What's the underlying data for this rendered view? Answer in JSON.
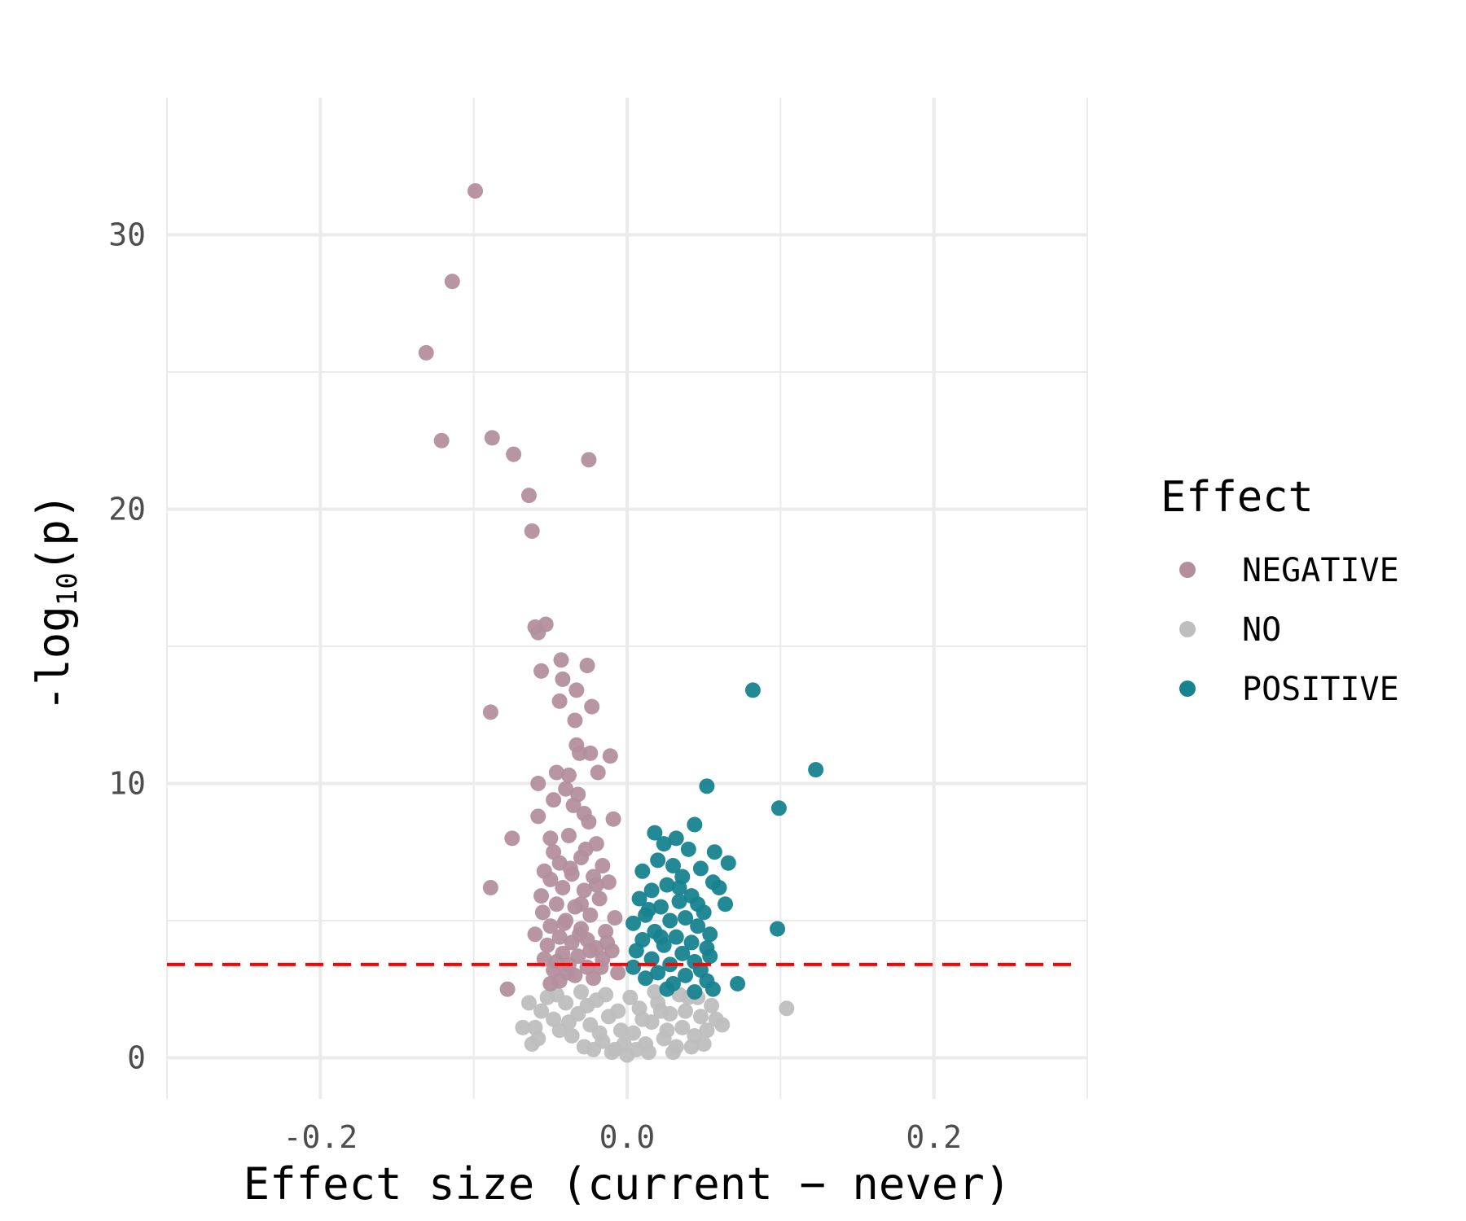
{
  "chart_data": {
    "type": "scatter",
    "title": "",
    "xlabel": "Effect size (current − never)",
    "ylabel_main": "-log",
    "ylabel_sub": "10",
    "ylabel_tail": "(p)",
    "xlim": [
      -0.3,
      0.3
    ],
    "ylim": [
      -1.5,
      35
    ],
    "x_ticks": [
      -0.2,
      0.0,
      0.2
    ],
    "x_tick_labels": [
      "-0.2",
      "0.0",
      "0.2"
    ],
    "y_ticks": [
      0,
      10,
      20,
      30
    ],
    "y_tick_labels": [
      "0",
      "10",
      "20",
      "30"
    ],
    "grid": true,
    "threshold": {
      "y": 3.4,
      "color": "#ff0000",
      "style": "dashed"
    },
    "legend": {
      "title": "Effect",
      "placement": "right",
      "entries": [
        {
          "label": "NEGATIVE",
          "color": "#b38f9e"
        },
        {
          "label": "NO",
          "color": "#bebebe"
        },
        {
          "label": "POSITIVE",
          "color": "#17838f"
        }
      ]
    },
    "series": [
      {
        "name": "NEGATIVE",
        "color": "#b38f9e",
        "points": [
          [
            -0.099,
            31.6
          ],
          [
            -0.114,
            28.3
          ],
          [
            -0.131,
            25.7
          ],
          [
            -0.121,
            22.5
          ],
          [
            -0.088,
            22.6
          ],
          [
            -0.074,
            22.0
          ],
          [
            -0.025,
            21.8
          ],
          [
            -0.064,
            20.5
          ],
          [
            -0.062,
            19.2
          ],
          [
            -0.06,
            15.7
          ],
          [
            -0.053,
            15.8
          ],
          [
            -0.058,
            15.5
          ],
          [
            -0.043,
            14.5
          ],
          [
            -0.026,
            14.3
          ],
          [
            -0.056,
            14.1
          ],
          [
            -0.042,
            13.8
          ],
          [
            -0.033,
            13.4
          ],
          [
            -0.089,
            12.6
          ],
          [
            -0.023,
            12.8
          ],
          [
            -0.044,
            13.0
          ],
          [
            -0.034,
            12.3
          ],
          [
            -0.033,
            11.4
          ],
          [
            -0.031,
            11.1
          ],
          [
            -0.011,
            11.0
          ],
          [
            -0.024,
            11.1
          ],
          [
            -0.046,
            10.4
          ],
          [
            -0.038,
            10.3
          ],
          [
            -0.019,
            10.4
          ],
          [
            -0.058,
            10.0
          ],
          [
            -0.04,
            9.8
          ],
          [
            -0.032,
            9.6
          ],
          [
            -0.048,
            9.4
          ],
          [
            -0.035,
            9.2
          ],
          [
            -0.028,
            8.9
          ],
          [
            -0.058,
            8.8
          ],
          [
            -0.009,
            8.7
          ],
          [
            -0.025,
            8.6
          ],
          [
            -0.05,
            8.0
          ],
          [
            -0.075,
            8.0
          ],
          [
            -0.038,
            8.1
          ],
          [
            -0.02,
            7.8
          ],
          [
            -0.048,
            7.5
          ],
          [
            -0.03,
            7.3
          ],
          [
            -0.044,
            7.1
          ],
          [
            -0.016,
            7.0
          ],
          [
            -0.054,
            6.8
          ],
          [
            -0.036,
            6.7
          ],
          [
            -0.022,
            6.6
          ],
          [
            -0.05,
            6.5
          ],
          [
            -0.012,
            6.4
          ],
          [
            -0.089,
            6.2
          ],
          [
            -0.042,
            6.2
          ],
          [
            -0.028,
            6.1
          ],
          [
            -0.056,
            5.9
          ],
          [
            -0.018,
            5.8
          ],
          [
            -0.046,
            5.6
          ],
          [
            -0.034,
            5.5
          ],
          [
            -0.055,
            5.3
          ],
          [
            -0.024,
            5.2
          ],
          [
            -0.008,
            5.1
          ],
          [
            -0.04,
            5.0
          ],
          [
            -0.05,
            4.8
          ],
          [
            -0.03,
            4.7
          ],
          [
            -0.014,
            4.6
          ],
          [
            -0.06,
            4.5
          ],
          [
            -0.044,
            4.4
          ],
          [
            -0.026,
            4.3
          ],
          [
            -0.036,
            4.2
          ],
          [
            -0.052,
            4.1
          ],
          [
            -0.02,
            4.0
          ],
          [
            -0.01,
            3.9
          ],
          [
            -0.042,
            3.8
          ],
          [
            -0.032,
            3.7
          ],
          [
            -0.054,
            3.6
          ],
          [
            -0.016,
            3.6
          ],
          [
            -0.046,
            3.5
          ],
          [
            -0.038,
            3.4
          ],
          [
            -0.026,
            3.3
          ],
          [
            -0.048,
            3.2
          ],
          [
            -0.006,
            3.1
          ],
          [
            -0.034,
            3.0
          ],
          [
            -0.022,
            2.9
          ],
          [
            -0.044,
            2.8
          ],
          [
            -0.05,
            2.7
          ],
          [
            -0.078,
            2.5
          ],
          [
            -0.03,
            5.6
          ],
          [
            -0.02,
            6.3
          ],
          [
            -0.037,
            6.9
          ],
          [
            -0.027,
            7.6
          ],
          [
            -0.041,
            4.9
          ],
          [
            -0.013,
            4.2
          ],
          [
            -0.031,
            4.5
          ],
          [
            -0.024,
            3.9
          ],
          [
            -0.039,
            3.1
          ],
          [
            -0.017,
            3.3
          ]
        ]
      },
      {
        "name": "NO",
        "color": "#bebebe",
        "points": [
          [
            0.104,
            1.8
          ],
          [
            -0.06,
            1.1
          ],
          [
            -0.068,
            1.1
          ],
          [
            -0.062,
            0.5
          ],
          [
            -0.058,
            0.7
          ],
          [
            0.062,
            1.2
          ],
          [
            -0.064,
            2.0
          ],
          [
            -0.056,
            1.7
          ],
          [
            -0.048,
            1.4
          ],
          [
            -0.052,
            2.2
          ],
          [
            -0.04,
            2.0
          ],
          [
            -0.044,
            1.0
          ],
          [
            -0.036,
            0.8
          ],
          [
            -0.032,
            1.6
          ],
          [
            -0.028,
            0.4
          ],
          [
            -0.024,
            1.2
          ],
          [
            -0.02,
            2.1
          ],
          [
            -0.016,
            0.6
          ],
          [
            -0.012,
            1.5
          ],
          [
            -0.008,
            0.3
          ],
          [
            -0.004,
            1.0
          ],
          [
            0.0,
            0.1
          ],
          [
            0.004,
            0.9
          ],
          [
            0.008,
            1.8
          ],
          [
            0.012,
            0.5
          ],
          [
            0.016,
            1.3
          ],
          [
            0.02,
            2.0
          ],
          [
            0.024,
            0.7
          ],
          [
            0.028,
            1.6
          ],
          [
            0.032,
            0.4
          ],
          [
            0.036,
            1.1
          ],
          [
            0.04,
            2.2
          ],
          [
            0.044,
            0.8
          ],
          [
            0.048,
            1.5
          ],
          [
            0.05,
            0.5
          ],
          [
            0.052,
            1.0
          ],
          [
            0.055,
            1.9
          ],
          [
            0.058,
            1.4
          ],
          [
            -0.046,
            2.3
          ],
          [
            -0.03,
            2.4
          ],
          [
            -0.014,
            2.3
          ],
          [
            0.002,
            2.2
          ],
          [
            0.018,
            2.4
          ],
          [
            0.034,
            2.3
          ],
          [
            0.046,
            2.2
          ],
          [
            -0.026,
            1.9
          ],
          [
            -0.01,
            0.2
          ],
          [
            0.006,
            0.3
          ],
          [
            0.014,
            0.2
          ],
          [
            -0.002,
            0.5
          ],
          [
            -0.018,
            0.9
          ],
          [
            0.026,
            1.0
          ],
          [
            0.042,
            0.4
          ],
          [
            -0.038,
            1.3
          ],
          [
            0.01,
            1.4
          ],
          [
            -0.006,
            1.7
          ],
          [
            0.022,
            1.7
          ],
          [
            0.038,
            1.7
          ],
          [
            -0.022,
            0.3
          ],
          [
            0.03,
            0.2
          ]
        ]
      },
      {
        "name": "POSITIVE",
        "color": "#17838f",
        "points": [
          [
            0.082,
            13.4
          ],
          [
            0.123,
            10.5
          ],
          [
            0.052,
            9.9
          ],
          [
            0.099,
            9.1
          ],
          [
            0.044,
            8.5
          ],
          [
            0.018,
            8.2
          ],
          [
            0.032,
            8.0
          ],
          [
            0.024,
            7.8
          ],
          [
            0.04,
            7.6
          ],
          [
            0.057,
            7.5
          ],
          [
            0.066,
            7.1
          ],
          [
            0.02,
            7.2
          ],
          [
            0.03,
            7.0
          ],
          [
            0.048,
            6.9
          ],
          [
            0.01,
            6.8
          ],
          [
            0.036,
            6.6
          ],
          [
            0.056,
            6.4
          ],
          [
            0.026,
            6.3
          ],
          [
            0.06,
            6.2
          ],
          [
            0.016,
            6.1
          ],
          [
            0.042,
            5.9
          ],
          [
            0.008,
            5.8
          ],
          [
            0.034,
            5.7
          ],
          [
            0.064,
            5.6
          ],
          [
            0.022,
            5.5
          ],
          [
            0.05,
            5.3
          ],
          [
            0.012,
            5.2
          ],
          [
            0.038,
            5.1
          ],
          [
            0.028,
            5.0
          ],
          [
            0.004,
            4.9
          ],
          [
            0.046,
            4.8
          ],
          [
            0.098,
            4.7
          ],
          [
            0.018,
            4.6
          ],
          [
            0.054,
            4.5
          ],
          [
            0.032,
            4.4
          ],
          [
            0.01,
            4.3
          ],
          [
            0.042,
            4.2
          ],
          [
            0.024,
            4.1
          ],
          [
            0.052,
            4.0
          ],
          [
            0.006,
            3.9
          ],
          [
            0.036,
            3.8
          ],
          [
            0.054,
            3.7
          ],
          [
            0.016,
            3.6
          ],
          [
            0.044,
            3.5
          ],
          [
            0.028,
            3.4
          ],
          [
            0.004,
            3.3
          ],
          [
            0.048,
            3.2
          ],
          [
            0.02,
            3.1
          ],
          [
            0.038,
            3.0
          ],
          [
            0.012,
            2.9
          ],
          [
            0.052,
            2.8
          ],
          [
            0.03,
            2.7
          ],
          [
            0.072,
            2.7
          ],
          [
            0.056,
            2.5
          ],
          [
            0.044,
            2.4
          ],
          [
            0.026,
            2.5
          ],
          [
            0.014,
            5.4
          ],
          [
            0.034,
            6.2
          ],
          [
            0.046,
            5.6
          ],
          [
            0.022,
            4.4
          ]
        ]
      }
    ]
  }
}
